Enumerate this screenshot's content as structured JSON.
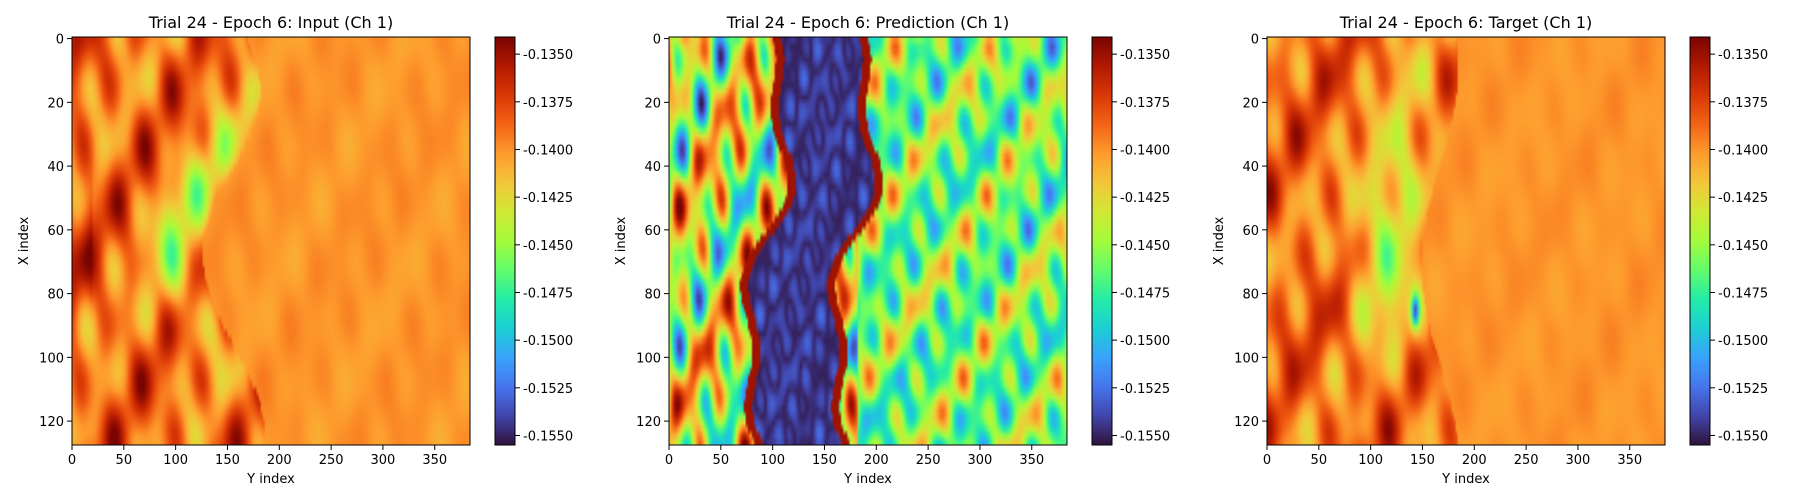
{
  "figure": {
    "colormap": "turbo",
    "colormap_stops": [
      "#30123b",
      "#4145ab",
      "#4675ed",
      "#39a2fc",
      "#1bcfd4",
      "#24eca6",
      "#61fc6c",
      "#a4fc3b",
      "#d1e834",
      "#f3c63a",
      "#fe9b2d",
      "#f36315",
      "#d93806",
      "#b11901",
      "#7a0402"
    ],
    "background": "#ffffff"
  },
  "chart_data": [
    {
      "type": "heatmap",
      "title": "Trial 24 - Epoch 6: Input (Ch 1)",
      "xlabel": "Y index",
      "ylabel": "X index",
      "xlim": [
        0,
        383
      ],
      "ylim": [
        127,
        0
      ],
      "xticks": [
        0,
        50,
        100,
        150,
        200,
        250,
        300,
        350
      ],
      "yticks": [
        0,
        20,
        40,
        60,
        80,
        100,
        120
      ],
      "grid_shape": [
        128,
        384
      ],
      "colorbar": {
        "vmin": -0.1555,
        "vmax": -0.1341,
        "ticks": [
          "-0.1350",
          "-0.1375",
          "-0.1400",
          "-0.1425",
          "-0.1450",
          "-0.1475",
          "-0.1500",
          "-0.1525",
          "-0.1550"
        ],
        "tick_values": [
          -0.135,
          -0.1375,
          -0.14,
          -0.1425,
          -0.145,
          -0.1475,
          -0.15,
          -0.1525,
          -0.155
        ]
      },
      "field_description": [
        {
          "y_range": [
            0,
            150
          ],
          "approx_value": -0.1395,
          "note": "turbulent band, orange/red with green patches"
        },
        {
          "y_range": [
            150,
            383
          ],
          "approx_value": -0.1405,
          "note": "nearly uniform light orange"
        }
      ]
    },
    {
      "type": "heatmap",
      "title": "Trial 24 - Epoch 6: Prediction (Ch 1)",
      "xlabel": "Y index",
      "ylabel": "X index",
      "xlim": [
        0,
        383
      ],
      "ylim": [
        127,
        0
      ],
      "xticks": [
        0,
        50,
        100,
        150,
        200,
        250,
        300,
        350
      ],
      "yticks": [
        0,
        20,
        40,
        60,
        80,
        100,
        120
      ],
      "grid_shape": [
        128,
        384
      ],
      "colorbar": {
        "vmin": -0.1555,
        "vmax": -0.1341,
        "ticks": [
          "-0.1350",
          "-0.1375",
          "-0.1400",
          "-0.1425",
          "-0.1450",
          "-0.1475",
          "-0.1500",
          "-0.1525",
          "-0.1550"
        ],
        "tick_values": [
          -0.135,
          -0.1375,
          -0.14,
          -0.1425,
          -0.145,
          -0.1475,
          -0.15,
          -0.1525,
          -0.155
        ]
      },
      "field_description": [
        {
          "y_range": [
            0,
            90
          ],
          "approx_value": -0.141,
          "note": "mixed red/orange/green/cyan noise"
        },
        {
          "y_range": [
            90,
            175
          ],
          "approx_value": -0.155,
          "note": "dark purple vertical band with red edges"
        },
        {
          "y_range": [
            175,
            383
          ],
          "approx_value": -0.145,
          "note": "green/cyan/yellow streaks"
        }
      ]
    },
    {
      "type": "heatmap",
      "title": "Trial 24 - Epoch 6: Target (Ch 1)",
      "xlabel": "Y index",
      "ylabel": "X index",
      "xlim": [
        0,
        383
      ],
      "ylim": [
        127,
        0
      ],
      "xticks": [
        0,
        50,
        100,
        150,
        200,
        250,
        300,
        350
      ],
      "yticks": [
        0,
        20,
        40,
        60,
        80,
        100,
        120
      ],
      "grid_shape": [
        128,
        384
      ],
      "colorbar": {
        "vmin": -0.1555,
        "vmax": -0.1341,
        "ticks": [
          "-0.1350",
          "-0.1375",
          "-0.1400",
          "-0.1425",
          "-0.1450",
          "-0.1475",
          "-0.1500",
          "-0.1525",
          "-0.1550"
        ],
        "tick_values": [
          -0.135,
          -0.1375,
          -0.14,
          -0.1425,
          -0.145,
          -0.1475,
          -0.15,
          -0.1525,
          -0.155
        ]
      },
      "field_description": [
        {
          "y_range": [
            0,
            150
          ],
          "approx_value": -0.1395,
          "note": "orange/red streaks with green blob"
        },
        {
          "y_range": [
            150,
            383
          ],
          "approx_value": -0.1405,
          "note": "nearly uniform light orange"
        }
      ]
    }
  ]
}
